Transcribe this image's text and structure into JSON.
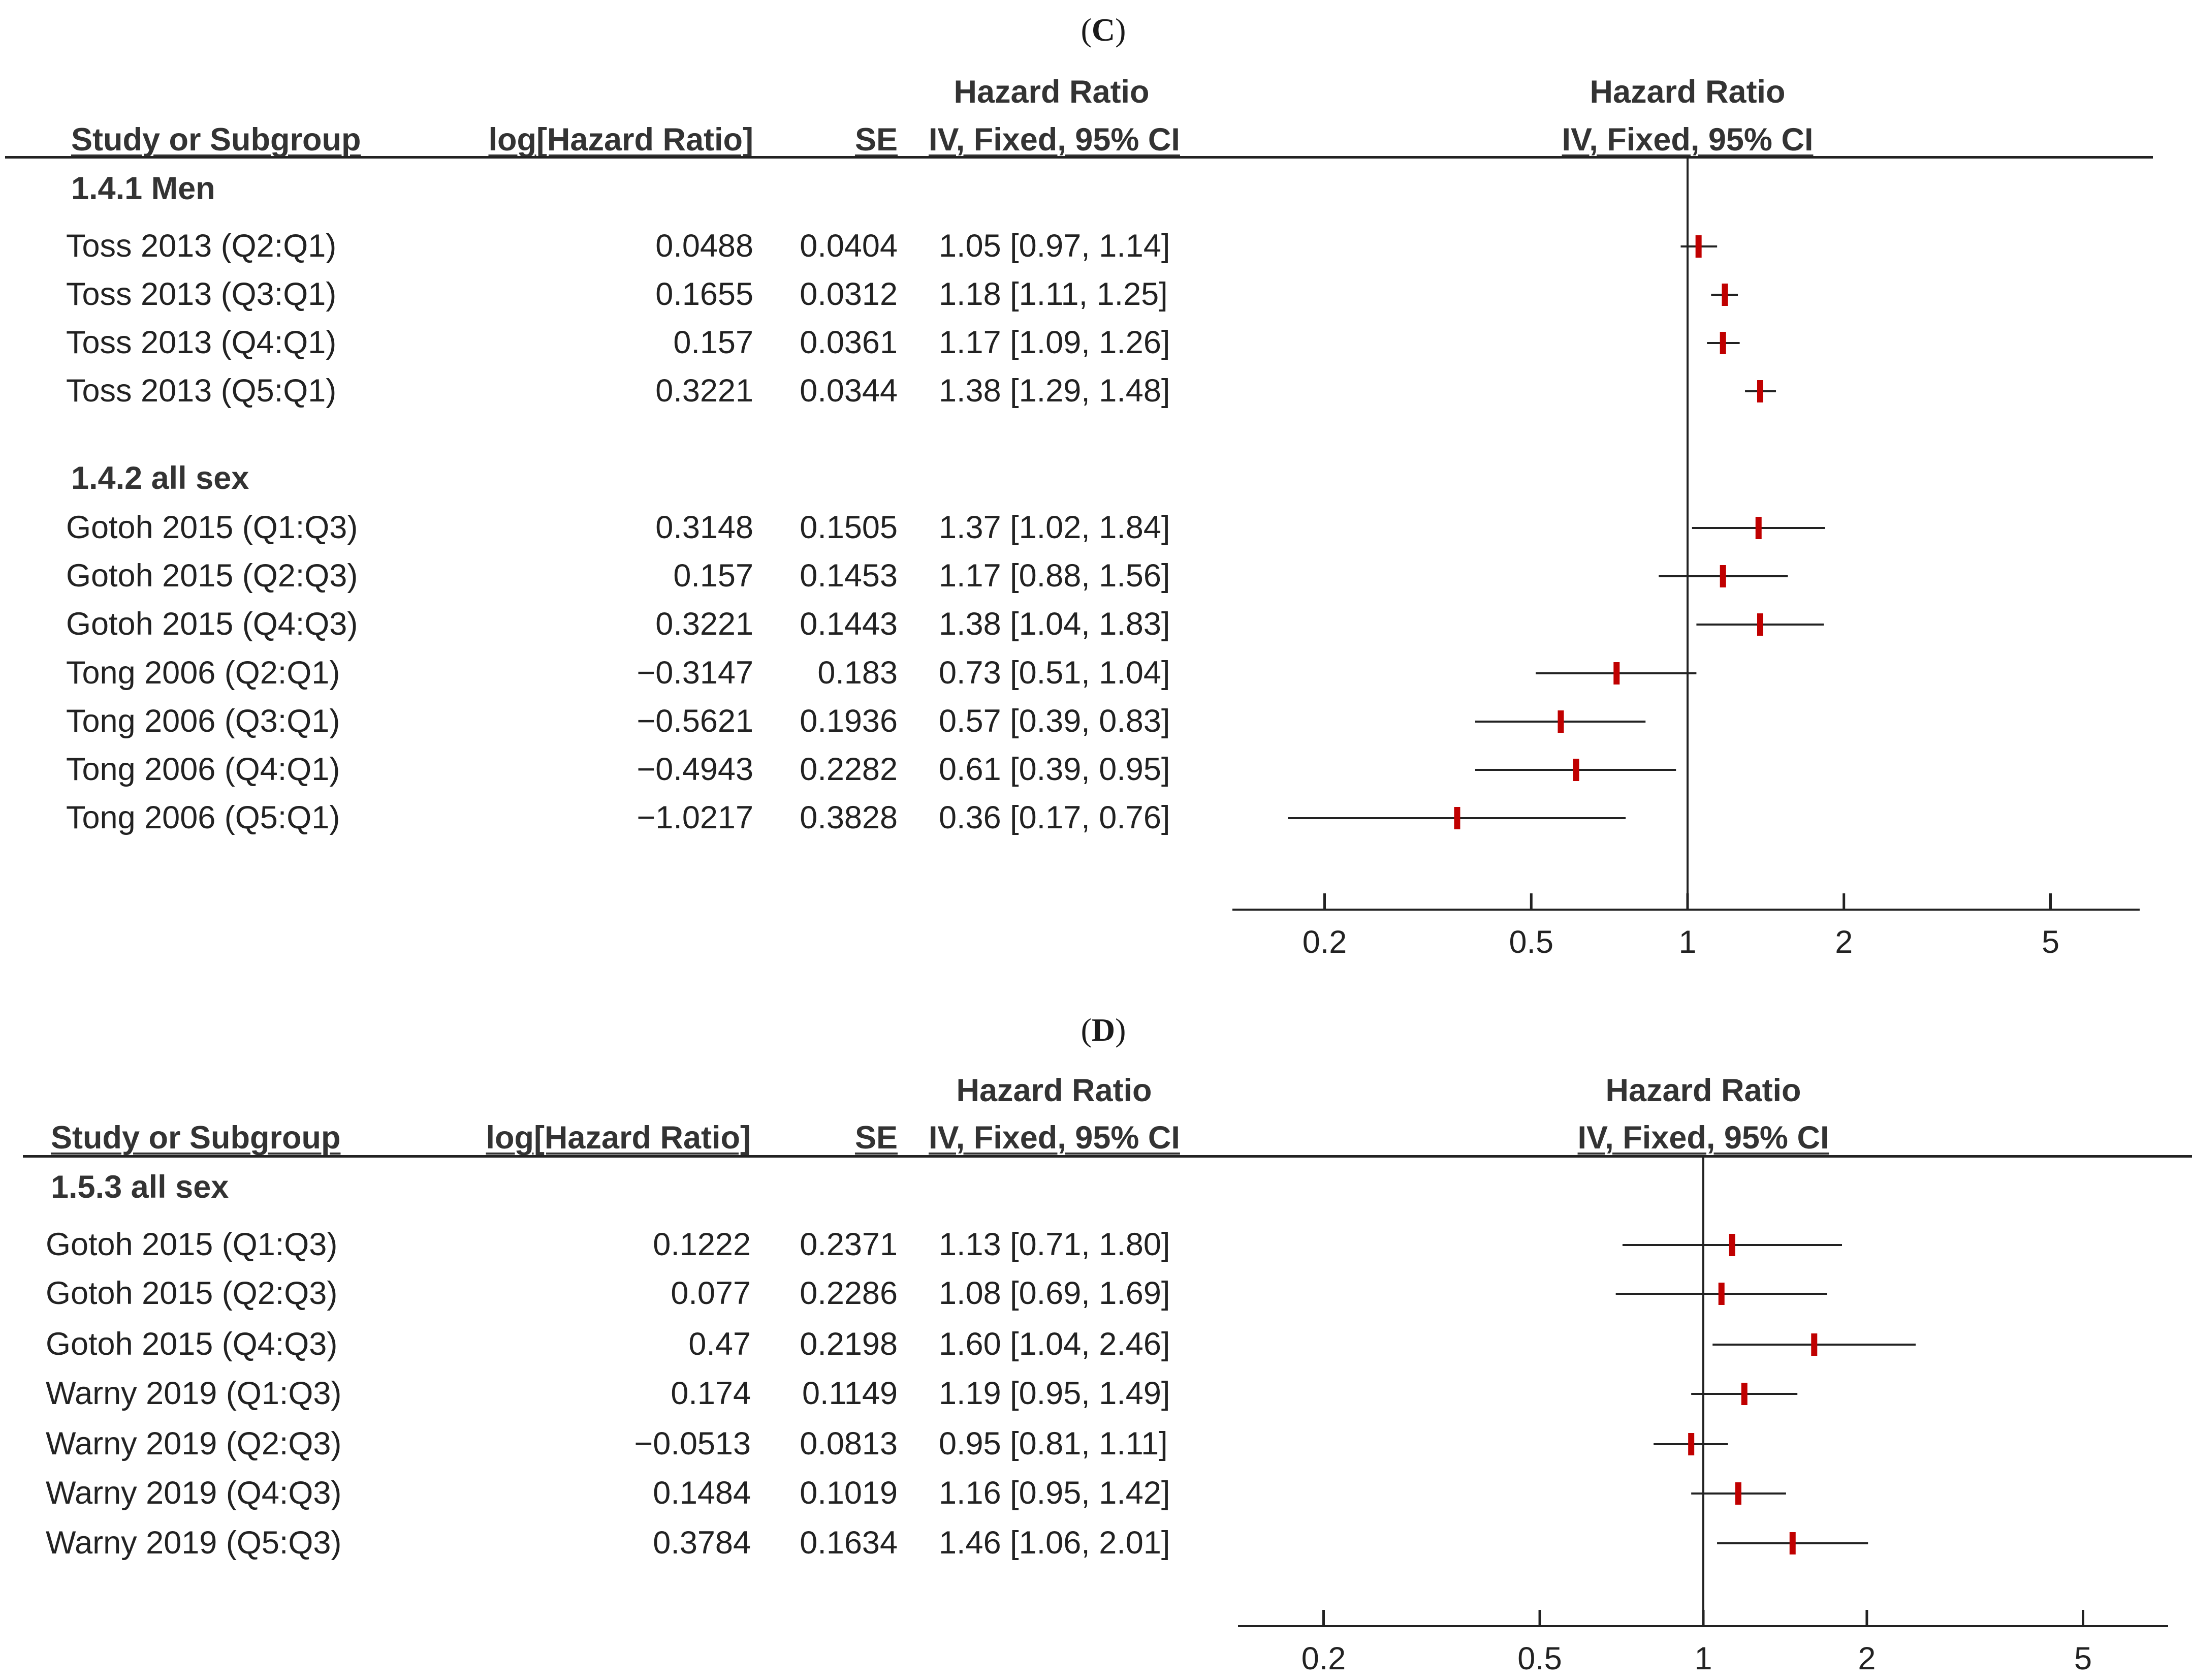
{
  "chart_data": [
    {
      "type": "forest",
      "panel_label_open": "(",
      "panel_label": "C",
      "panel_label_close": ")",
      "headers": {
        "study": "Study or Subgroup",
        "log_hr": "log[Hazard Ratio]",
        "se": "SE",
        "hr_title": "Hazard Ratio",
        "hr_method": "IV, Fixed, 95% CI",
        "plot_title": "Hazard Ratio",
        "plot_method": "IV, Fixed, 95% CI"
      },
      "x_scale": "log",
      "reference_line": 1,
      "xticks": [
        {
          "value": 0.2,
          "label": "0.2"
        },
        {
          "value": 0.5,
          "label": "0.5"
        },
        {
          "value": 1,
          "label": "1"
        },
        {
          "value": 2,
          "label": "2"
        },
        {
          "value": 5,
          "label": "5"
        }
      ],
      "xlim": [
        0.15,
        6.8
      ],
      "subgroups": [
        {
          "label": "1.4.1 Men",
          "studies": [
            {
              "name": "Toss 2013 (Q2:Q1)",
              "log_hr": "0.0488",
              "se": "0.0404",
              "ci_text": "1.05 [0.97, 1.14]",
              "hr": 1.05,
              "lower": 0.97,
              "upper": 1.14
            },
            {
              "name": "Toss 2013 (Q3:Q1)",
              "log_hr": "0.1655",
              "se": "0.0312",
              "ci_text": "1.18 [1.11, 1.25]",
              "hr": 1.18,
              "lower": 1.11,
              "upper": 1.25
            },
            {
              "name": "Toss 2013 (Q4:Q1)",
              "log_hr": "0.157",
              "se": "0.0361",
              "ci_text": "1.17 [1.09, 1.26]",
              "hr": 1.17,
              "lower": 1.09,
              "upper": 1.26
            },
            {
              "name": "Toss 2013 (Q5:Q1)",
              "log_hr": "0.3221",
              "se": "0.0344",
              "ci_text": "1.38 [1.29, 1.48]",
              "hr": 1.38,
              "lower": 1.29,
              "upper": 1.48
            }
          ]
        },
        {
          "label": "1.4.2 all sex",
          "studies": [
            {
              "name": "Gotoh 2015 (Q1:Q3)",
              "log_hr": "0.3148",
              "se": "0.1505",
              "ci_text": "1.37 [1.02, 1.84]",
              "hr": 1.37,
              "lower": 1.02,
              "upper": 1.84
            },
            {
              "name": "Gotoh 2015 (Q2:Q3)",
              "log_hr": "0.157",
              "se": "0.1453",
              "ci_text": "1.17 [0.88, 1.56]",
              "hr": 1.17,
              "lower": 0.88,
              "upper": 1.56
            },
            {
              "name": "Gotoh 2015 (Q4:Q3)",
              "log_hr": "0.3221",
              "se": "0.1443",
              "ci_text": "1.38 [1.04, 1.83]",
              "hr": 1.38,
              "lower": 1.04,
              "upper": 1.83
            },
            {
              "name": "Tong 2006 (Q2:Q1)",
              "log_hr": "−0.3147",
              "se": "0.183",
              "ci_text": "0.73 [0.51, 1.04]",
              "hr": 0.73,
              "lower": 0.51,
              "upper": 1.04
            },
            {
              "name": "Tong 2006 (Q3:Q1)",
              "log_hr": "−0.5621",
              "se": "0.1936",
              "ci_text": "0.57 [0.39, 0.83]",
              "hr": 0.57,
              "lower": 0.39,
              "upper": 0.83
            },
            {
              "name": "Tong 2006 (Q4:Q1)",
              "log_hr": "−0.4943",
              "se": "0.2282",
              "ci_text": "0.61 [0.39, 0.95]",
              "hr": 0.61,
              "lower": 0.39,
              "upper": 0.95
            },
            {
              "name": "Tong 2006 (Q5:Q1)",
              "log_hr": "−1.0217",
              "se": "0.3828",
              "ci_text": "0.36 [0.17, 0.76]",
              "hr": 0.36,
              "lower": 0.17,
              "upper": 0.76
            }
          ]
        }
      ]
    },
    {
      "type": "forest",
      "panel_label_open": "(",
      "panel_label": "D",
      "panel_label_close": ")",
      "headers": {
        "study": "Study or Subgroup",
        "log_hr": "log[Hazard Ratio]",
        "se": "SE",
        "hr_title": "Hazard Ratio",
        "hr_method": "IV, Fixed, 95% CI",
        "plot_title": "Hazard Ratio",
        "plot_method": "IV, Fixed, 95% CI"
      },
      "x_scale": "log",
      "reference_line": 1,
      "xticks": [
        {
          "value": 0.2,
          "label": "0.2"
        },
        {
          "value": 0.5,
          "label": "0.5"
        },
        {
          "value": 1,
          "label": "1"
        },
        {
          "value": 2,
          "label": "2"
        },
        {
          "value": 5,
          "label": "5"
        }
      ],
      "xlim": [
        0.15,
        6.8
      ],
      "subgroups": [
        {
          "label": "1.5.3 all sex",
          "studies": [
            {
              "name": "Gotoh 2015 (Q1:Q3)",
              "log_hr": "0.1222",
              "se": "0.2371",
              "ci_text": "1.13 [0.71, 1.80]",
              "hr": 1.13,
              "lower": 0.71,
              "upper": 1.8
            },
            {
              "name": "Gotoh 2015 (Q2:Q3)",
              "log_hr": "0.077",
              "se": "0.2286",
              "ci_text": "1.08 [0.69, 1.69]",
              "hr": 1.08,
              "lower": 0.69,
              "upper": 1.69
            },
            {
              "name": "Gotoh 2015 (Q4:Q3)",
              "log_hr": "0.47",
              "se": "0.2198",
              "ci_text": "1.60 [1.04, 2.46]",
              "hr": 1.6,
              "lower": 1.04,
              "upper": 2.46
            },
            {
              "name": "Warny 2019 (Q1:Q3)",
              "log_hr": "0.174",
              "se": "0.1149",
              "ci_text": "1.19 [0.95, 1.49]",
              "hr": 1.19,
              "lower": 0.95,
              "upper": 1.49
            },
            {
              "name": "Warny 2019 (Q2:Q3)",
              "log_hr": "−0.0513",
              "se": "0.0813",
              "ci_text": "0.95 [0.81, 1.11]",
              "hr": 0.95,
              "lower": 0.81,
              "upper": 1.11
            },
            {
              "name": "Warny 2019 (Q4:Q3)",
              "log_hr": "0.1484",
              "se": "0.1019",
              "ci_text": "1.16 [0.95, 1.42]",
              "hr": 1.16,
              "lower": 0.95,
              "upper": 1.42
            },
            {
              "name": "Warny 2019 (Q5:Q3)",
              "log_hr": "0.3784",
              "se": "0.1634",
              "ci_text": "1.46 [1.06, 2.01]",
              "hr": 1.46,
              "lower": 1.06,
              "upper": 2.01
            }
          ]
        }
      ]
    }
  ],
  "colors": {
    "point": "#c00000",
    "line": "#222222"
  }
}
